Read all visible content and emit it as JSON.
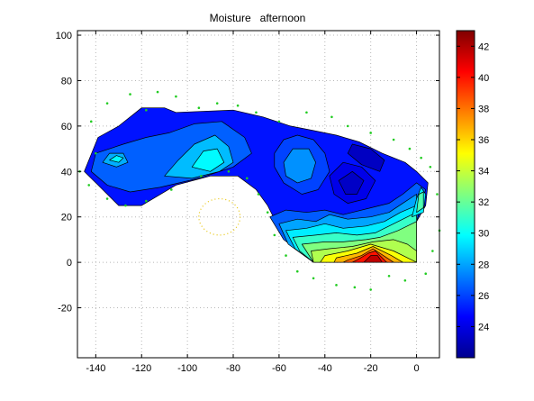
{
  "chart_data": {
    "type": "heatmap",
    "title": "Moisture   afternoon",
    "xlabel": "",
    "ylabel": "",
    "xlim": [
      -148,
      10
    ],
    "ylim": [
      -42,
      102
    ],
    "x_ticks": [
      -140,
      -120,
      -100,
      -80,
      -60,
      -40,
      -20,
      0
    ],
    "y_ticks": [
      100,
      80,
      60,
      40,
      20,
      0,
      -20
    ],
    "grid": true,
    "colorbar": {
      "range": [
        22,
        43
      ],
      "ticks": [
        24,
        26,
        28,
        30,
        32,
        34,
        36,
        38,
        40,
        42
      ]
    },
    "regions": [
      {
        "level": 25.0,
        "points": [
          [
            -145,
            40
          ],
          [
            -139,
            55
          ],
          [
            -130,
            60
          ],
          [
            -120,
            68
          ],
          [
            -110,
            68
          ],
          [
            -105,
            66
          ],
          [
            -80,
            67
          ],
          [
            -67,
            64
          ],
          [
            -55,
            60
          ],
          [
            -45,
            58
          ],
          [
            -35,
            56
          ],
          [
            -25,
            53
          ],
          [
            -15,
            48
          ],
          [
            -5,
            44
          ],
          [
            0,
            40
          ],
          [
            5,
            35
          ],
          [
            4,
            25
          ],
          [
            0,
            18
          ],
          [
            0,
            0
          ],
          [
            -45,
            0
          ],
          [
            -60,
            15
          ],
          [
            -65,
            25
          ],
          [
            -70,
            32
          ],
          [
            -78,
            38
          ],
          [
            -90,
            38
          ],
          [
            -105,
            34
          ],
          [
            -120,
            25
          ],
          [
            -130,
            25
          ],
          [
            -140,
            35
          ]
        ]
      },
      {
        "level": 26.6,
        "points": [
          [
            -140,
            48
          ],
          [
            -128,
            52
          ],
          [
            -118,
            55
          ],
          [
            -108,
            57
          ],
          [
            -97,
            61
          ],
          [
            -85,
            62
          ],
          [
            -75,
            55
          ],
          [
            -72,
            48
          ],
          [
            -80,
            42
          ],
          [
            -95,
            37
          ],
          [
            -112,
            33
          ],
          [
            -125,
            31
          ],
          [
            -135,
            34
          ],
          [
            -142,
            40
          ]
        ]
      },
      {
        "level": 28.5,
        "points": [
          [
            -110,
            38
          ],
          [
            -104,
            45
          ],
          [
            -97,
            52
          ],
          [
            -88,
            56
          ],
          [
            -82,
            51
          ],
          [
            -80,
            44
          ],
          [
            -86,
            40
          ],
          [
            -98,
            37
          ]
        ]
      },
      {
        "level": 29.8,
        "points": [
          [
            -98,
            42
          ],
          [
            -93,
            49
          ],
          [
            -87,
            50
          ],
          [
            -84,
            44
          ],
          [
            -90,
            40
          ]
        ]
      },
      {
        "level": 28.2,
        "points": [
          [
            -137,
            44
          ],
          [
            -134,
            48
          ],
          [
            -128,
            48
          ],
          [
            -126,
            44
          ],
          [
            -131,
            42
          ]
        ]
      },
      {
        "level": 29.8,
        "points": [
          [
            -134,
            45
          ],
          [
            -131,
            47
          ],
          [
            -128,
            46
          ],
          [
            -130,
            44
          ]
        ]
      },
      {
        "level": 26.0,
        "points": [
          [
            -62,
            48
          ],
          [
            -58,
            54
          ],
          [
            -52,
            56
          ],
          [
            -45,
            54
          ],
          [
            -40,
            48
          ],
          [
            -38,
            40
          ],
          [
            -43,
            32
          ],
          [
            -50,
            30
          ],
          [
            -58,
            35
          ],
          [
            -62,
            42
          ]
        ]
      },
      {
        "level": 27.6,
        "points": [
          [
            -58,
            44
          ],
          [
            -54,
            50
          ],
          [
            -47,
            50
          ],
          [
            -44,
            44
          ],
          [
            -46,
            37
          ],
          [
            -52,
            35
          ],
          [
            -57,
            38
          ]
        ]
      },
      {
        "level": 23.2,
        "points": [
          [
            -28,
            52
          ],
          [
            -20,
            50
          ],
          [
            -14,
            45
          ],
          [
            -16,
            40
          ],
          [
            -24,
            43
          ],
          [
            -30,
            48
          ]
        ]
      },
      {
        "level": 24.1,
        "points": [
          [
            -38,
            38
          ],
          [
            -32,
            44
          ],
          [
            -24,
            42
          ],
          [
            -18,
            36
          ],
          [
            -22,
            28
          ],
          [
            -30,
            26
          ],
          [
            -36,
            30
          ]
        ]
      },
      {
        "level": 23.3,
        "points": [
          [
            -34,
            36
          ],
          [
            -28,
            40
          ],
          [
            -23,
            36
          ],
          [
            -26,
            30
          ],
          [
            -31,
            30
          ]
        ]
      },
      {
        "level": 26.5,
        "points": [
          [
            -64,
            20
          ],
          [
            -57,
            23
          ],
          [
            -48,
            22
          ],
          [
            -40,
            23
          ],
          [
            -32,
            21
          ],
          [
            -20,
            24
          ],
          [
            -12,
            26
          ],
          [
            -6,
            30
          ],
          [
            0,
            35
          ],
          [
            4,
            32
          ],
          [
            0,
            18
          ],
          [
            0,
            0
          ],
          [
            -45,
            0
          ],
          [
            -58,
            10
          ]
        ]
      },
      {
        "level": 28.0,
        "points": [
          [
            -60,
            17
          ],
          [
            -52,
            19
          ],
          [
            -44,
            18
          ],
          [
            -38,
            21
          ],
          [
            -30,
            19
          ],
          [
            -20,
            20
          ],
          [
            -12,
            22
          ],
          [
            -6,
            26
          ],
          [
            0,
            30
          ],
          [
            0,
            0
          ],
          [
            -45,
            0
          ],
          [
            -56,
            8
          ]
        ]
      },
      {
        "level": 29.5,
        "points": [
          [
            -57,
            14
          ],
          [
            -48,
            15
          ],
          [
            -40,
            17
          ],
          [
            -32,
            15
          ],
          [
            -22,
            16
          ],
          [
            -14,
            18
          ],
          [
            -7,
            22
          ],
          [
            0,
            25
          ],
          [
            0,
            0
          ],
          [
            -45,
            0
          ],
          [
            -53,
            6
          ]
        ]
      },
      {
        "level": 31.0,
        "points": [
          [
            -54,
            11
          ],
          [
            -44,
            12
          ],
          [
            -35,
            13
          ],
          [
            -26,
            12
          ],
          [
            -18,
            13
          ],
          [
            -10,
            17
          ],
          [
            -4,
            20
          ],
          [
            0,
            22
          ],
          [
            0,
            0
          ],
          [
            -45,
            0
          ],
          [
            -51,
            5
          ]
        ]
      },
      {
        "level": 32.5,
        "points": [
          [
            -50,
            8
          ],
          [
            -40,
            9
          ],
          [
            -32,
            9
          ],
          [
            -22,
            10
          ],
          [
            -16,
            11
          ],
          [
            -8,
            14
          ],
          [
            0,
            18
          ],
          [
            0,
            0
          ],
          [
            -45,
            0
          ]
        ]
      },
      {
        "level": 33.5,
        "points": [
          [
            -46,
            5
          ],
          [
            -38,
            6
          ],
          [
            -28,
            7
          ],
          [
            -19,
            9
          ],
          [
            -10,
            10
          ],
          [
            -4,
            8
          ],
          [
            0,
            5
          ],
          [
            0,
            0
          ],
          [
            -45,
            0
          ]
        ]
      },
      {
        "level": 35.0,
        "points": [
          [
            -40,
            3
          ],
          [
            -30,
            5
          ],
          [
            -20,
            8
          ],
          [
            -10,
            5
          ],
          [
            -4,
            2
          ],
          [
            0,
            0
          ],
          [
            -42,
            0
          ]
        ]
      },
      {
        "level": 36.6,
        "points": [
          [
            -35,
            2
          ],
          [
            -26,
            4
          ],
          [
            -19,
            7
          ],
          [
            -11,
            3
          ],
          [
            -6,
            0
          ],
          [
            -36,
            0
          ]
        ]
      },
      {
        "level": 38.3,
        "points": [
          [
            -30,
            1
          ],
          [
            -24,
            3
          ],
          [
            -19,
            6
          ],
          [
            -13,
            2
          ],
          [
            -10,
            0
          ],
          [
            -32,
            0
          ]
        ]
      },
      {
        "level": 40.0,
        "points": [
          [
            -26,
            1
          ],
          [
            -21,
            4
          ],
          [
            -18,
            5
          ],
          [
            -14,
            1
          ],
          [
            -13,
            0
          ],
          [
            -28,
            0
          ]
        ]
      },
      {
        "level": 41.7,
        "points": [
          [
            -23,
            0
          ],
          [
            -20,
            3
          ],
          [
            -17,
            3
          ],
          [
            -15,
            0
          ]
        ]
      },
      {
        "level": 29.5,
        "points": [
          [
            -2,
            20
          ],
          [
            0,
            28
          ],
          [
            2,
            33
          ],
          [
            4,
            30
          ],
          [
            3,
            22
          ]
        ]
      },
      {
        "level": 31.5,
        "points": [
          [
            0,
            22
          ],
          [
            1,
            30
          ],
          [
            3,
            31
          ],
          [
            3,
            24
          ]
        ]
      }
    ],
    "markers": [
      [
        -147,
        40
      ],
      [
        -143,
        34
      ],
      [
        -140,
        48
      ],
      [
        -142,
        62
      ],
      [
        -135,
        70
      ],
      [
        -125,
        74
      ],
      [
        -118,
        67
      ],
      [
        -113,
        75
      ],
      [
        -105,
        73
      ],
      [
        -95,
        68
      ],
      [
        -87,
        70
      ],
      [
        -78,
        69
      ],
      [
        -70,
        66
      ],
      [
        -60,
        62
      ],
      [
        -48,
        66
      ],
      [
        -37,
        64
      ],
      [
        -30,
        60
      ],
      [
        -20,
        57
      ],
      [
        -10,
        54
      ],
      [
        -3,
        50
      ],
      [
        2,
        46
      ],
      [
        6,
        42
      ],
      [
        9,
        30
      ],
      [
        10,
        14
      ],
      [
        7,
        5
      ],
      [
        4,
        -5
      ],
      [
        -5,
        -8
      ],
      [
        -12,
        -6
      ],
      [
        -20,
        -12
      ],
      [
        -27,
        -11
      ],
      [
        -35,
        -10
      ],
      [
        -45,
        -7
      ],
      [
        -52,
        -4
      ],
      [
        -57,
        3
      ],
      [
        -62,
        12
      ],
      [
        -65,
        22
      ],
      [
        -69,
        30
      ],
      [
        -74,
        37
      ],
      [
        -82,
        40
      ],
      [
        -94,
        38
      ],
      [
        -107,
        32
      ],
      [
        -118,
        27
      ],
      [
        -127,
        25
      ],
      [
        -135,
        28
      ]
    ],
    "ellipse": {
      "cx": -86,
      "cy": 20,
      "rx": 9,
      "ry": 8
    }
  }
}
